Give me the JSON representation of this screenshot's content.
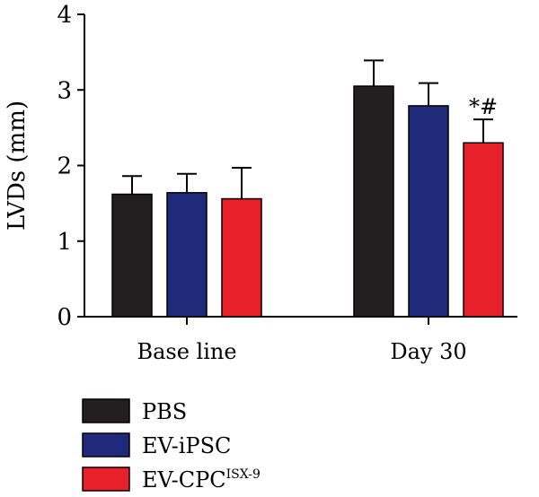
{
  "chart_data": {
    "type": "bar",
    "ylabel": "LVDs (mm)",
    "ylim": [
      0,
      4
    ],
    "yticks": [
      0,
      1,
      2,
      3,
      4
    ],
    "categories": [
      "Base line",
      "Day 30"
    ],
    "grid": false,
    "legend_position": "bottom-left",
    "series": [
      {
        "name": "PBS",
        "color": "#231f20",
        "values": [
          1.62,
          3.05
        ],
        "errors": [
          0.24,
          0.34
        ]
      },
      {
        "name": "EV-iPSC",
        "color": "#1f2a7a",
        "values": [
          1.64,
          2.79
        ],
        "errors": [
          0.25,
          0.3
        ]
      },
      {
        "name": "EV-CPC",
        "name_sup": "ISX-9",
        "color": "#e8202a",
        "values": [
          1.56,
          2.3
        ],
        "errors": [
          0.41,
          0.31
        ]
      }
    ],
    "annotations": [
      {
        "category": "Day 30",
        "series": "EV-CPC",
        "text": "*#"
      }
    ]
  }
}
